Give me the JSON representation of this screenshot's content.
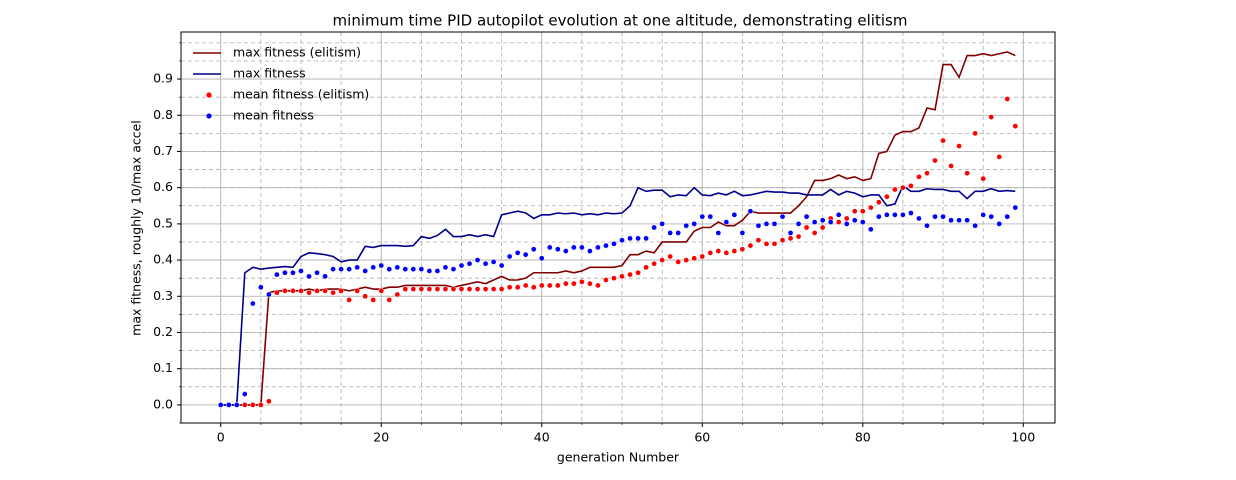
{
  "chart_data": {
    "type": "line",
    "title": "minimum time PID autopilot evolution at one altitude,  demonstrating elitism",
    "xlabel": "generation Number",
    "ylabel": "max fitness, roughly 10/max accel",
    "x": [
      0,
      1,
      2,
      3,
      4,
      5,
      6,
      7,
      8,
      9,
      10,
      11,
      12,
      13,
      14,
      15,
      16,
      17,
      18,
      19,
      20,
      21,
      22,
      23,
      24,
      25,
      26,
      27,
      28,
      29,
      30,
      31,
      32,
      33,
      34,
      35,
      36,
      37,
      38,
      39,
      40,
      41,
      42,
      43,
      44,
      45,
      46,
      47,
      48,
      49,
      50,
      51,
      52,
      53,
      54,
      55,
      56,
      57,
      58,
      59,
      60,
      61,
      62,
      63,
      64,
      65,
      66,
      67,
      68,
      69,
      70,
      71,
      72,
      73,
      74,
      75,
      76,
      77,
      78,
      79,
      80,
      81,
      82,
      83,
      84,
      85,
      86,
      87,
      88,
      89,
      90,
      91,
      92,
      93,
      94,
      95,
      96,
      97,
      98,
      99
    ],
    "series": [
      {
        "name": "max fitness (elitism)",
        "color": "#800000",
        "style": "line",
        "values": [
          0,
          0,
          0,
          0,
          0,
          0,
          0.31,
          0.315,
          0.315,
          0.315,
          0.315,
          0.32,
          0.315,
          0.32,
          0.32,
          0.32,
          0.315,
          0.32,
          0.325,
          0.32,
          0.32,
          0.325,
          0.325,
          0.33,
          0.33,
          0.33,
          0.33,
          0.33,
          0.33,
          0.325,
          0.33,
          0.335,
          0.34,
          0.335,
          0.345,
          0.355,
          0.345,
          0.345,
          0.35,
          0.365,
          0.365,
          0.365,
          0.365,
          0.37,
          0.365,
          0.37,
          0.38,
          0.38,
          0.38,
          0.38,
          0.385,
          0.415,
          0.415,
          0.425,
          0.42,
          0.45,
          0.45,
          0.45,
          0.45,
          0.48,
          0.49,
          0.49,
          0.505,
          0.495,
          0.495,
          0.51,
          0.535,
          0.53,
          0.53,
          0.53,
          0.53,
          0.53,
          0.55,
          0.575,
          0.62,
          0.62,
          0.625,
          0.635,
          0.625,
          0.63,
          0.62,
          0.625,
          0.695,
          0.7,
          0.745,
          0.755,
          0.755,
          0.765,
          0.82,
          0.815,
          0.94,
          0.94,
          0.905,
          0.965,
          0.965,
          0.97,
          0.965,
          0.97,
          0.975,
          0.965
        ]
      },
      {
        "name": "max fitness",
        "color": "#00008b",
        "style": "line",
        "values": [
          0,
          0,
          0,
          0.365,
          0.38,
          0.375,
          0.378,
          0.38,
          0.382,
          0.38,
          0.41,
          0.42,
          0.418,
          0.415,
          0.41,
          0.395,
          0.4,
          0.4,
          0.438,
          0.435,
          0.44,
          0.44,
          0.44,
          0.438,
          0.44,
          0.465,
          0.46,
          0.468,
          0.485,
          0.465,
          0.465,
          0.47,
          0.465,
          0.47,
          0.465,
          0.525,
          0.53,
          0.535,
          0.53,
          0.515,
          0.525,
          0.525,
          0.53,
          0.528,
          0.53,
          0.525,
          0.528,
          0.525,
          0.53,
          0.528,
          0.53,
          0.55,
          0.6,
          0.59,
          0.593,
          0.593,
          0.575,
          0.58,
          0.578,
          0.6,
          0.58,
          0.578,
          0.585,
          0.58,
          0.59,
          0.578,
          0.58,
          0.585,
          0.59,
          0.588,
          0.588,
          0.585,
          0.585,
          0.58,
          0.58,
          0.58,
          0.595,
          0.58,
          0.59,
          0.585,
          0.575,
          0.58,
          0.58,
          0.55,
          0.555,
          0.605,
          0.59,
          0.59,
          0.597,
          0.595,
          0.595,
          0.59,
          0.59,
          0.57,
          0.59,
          0.59,
          0.597,
          0.59,
          0.592,
          0.59
        ]
      },
      {
        "name": "mean fitness (elitism)",
        "color": "#ff0000",
        "style": "markers",
        "values": [
          0,
          0,
          0,
          0,
          0,
          0,
          0.01,
          0.31,
          0.315,
          0.315,
          0.315,
          0.31,
          0.315,
          0.315,
          0.31,
          0.315,
          0.29,
          0.315,
          0.3,
          0.29,
          0.315,
          0.29,
          0.305,
          0.32,
          0.32,
          0.32,
          0.32,
          0.32,
          0.32,
          0.32,
          0.32,
          0.32,
          0.32,
          0.32,
          0.32,
          0.32,
          0.325,
          0.325,
          0.33,
          0.325,
          0.33,
          0.33,
          0.33,
          0.335,
          0.335,
          0.34,
          0.335,
          0.33,
          0.345,
          0.35,
          0.355,
          0.36,
          0.365,
          0.38,
          0.39,
          0.4,
          0.41,
          0.395,
          0.4,
          0.405,
          0.41,
          0.42,
          0.425,
          0.42,
          0.425,
          0.43,
          0.44,
          0.455,
          0.445,
          0.445,
          0.455,
          0.46,
          0.465,
          0.49,
          0.475,
          0.49,
          0.515,
          0.505,
          0.515,
          0.535,
          0.535,
          0.545,
          0.56,
          0.575,
          0.595,
          0.6,
          0.605,
          0.63,
          0.64,
          0.675,
          0.73,
          0.66,
          0.715,
          0.64,
          0.75,
          0.625,
          0.795,
          0.685,
          0.845,
          0.77
        ]
      },
      {
        "name": "mean fitness",
        "color": "#0000ff",
        "style": "markers",
        "values": [
          0,
          0,
          0,
          0.03,
          0.28,
          0.325,
          0.305,
          0.36,
          0.365,
          0.365,
          0.37,
          0.355,
          0.365,
          0.355,
          0.375,
          0.375,
          0.375,
          0.38,
          0.37,
          0.38,
          0.385,
          0.375,
          0.38,
          0.375,
          0.375,
          0.375,
          0.37,
          0.37,
          0.38,
          0.375,
          0.385,
          0.39,
          0.4,
          0.39,
          0.395,
          0.385,
          0.41,
          0.42,
          0.415,
          0.43,
          0.405,
          0.435,
          0.43,
          0.425,
          0.435,
          0.435,
          0.425,
          0.435,
          0.44,
          0.445,
          0.455,
          0.46,
          0.46,
          0.46,
          0.49,
          0.5,
          0.475,
          0.475,
          0.495,
          0.5,
          0.52,
          0.52,
          0.475,
          0.505,
          0.525,
          0.475,
          0.535,
          0.495,
          0.5,
          0.5,
          0.52,
          0.475,
          0.5,
          0.52,
          0.505,
          0.51,
          0.505,
          0.525,
          0.5,
          0.51,
          0.505,
          0.485,
          0.52,
          0.525,
          0.525,
          0.525,
          0.53,
          0.515,
          0.495,
          0.52,
          0.52,
          0.51,
          0.51,
          0.51,
          0.495,
          0.525,
          0.52,
          0.5,
          0.52,
          0.545
        ]
      }
    ],
    "xlim": [
      -4.95,
      103.95
    ],
    "xticks": [
      0,
      20,
      40,
      60,
      80,
      100
    ],
    "ylim": [
      -0.05,
      1.03
    ],
    "yticks": [
      {
        "value": 0,
        "label": "0.0"
      },
      0.1,
      0.2,
      0.3,
      0.4,
      0.5,
      0.6,
      0.7,
      0.8,
      0.9
    ],
    "grid": true,
    "minor_grid": true,
    "xminor": 5,
    "yminor": 0.05,
    "legend": "upper left"
  }
}
